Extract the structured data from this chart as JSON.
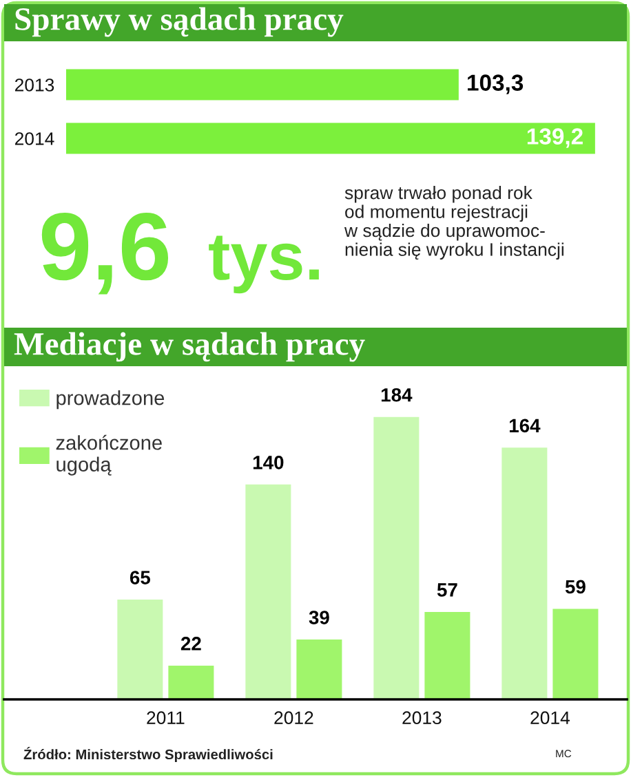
{
  "chart_data": [
    {
      "type": "bar",
      "title": "Sprawy w sądach pracy",
      "orientation": "horizontal",
      "categories": [
        "2013",
        "2014"
      ],
      "values": [
        103.3,
        139.2
      ],
      "color": "#7cf03c",
      "value_labels": [
        "103,3",
        "139,2"
      ]
    },
    {
      "type": "other",
      "annotations": [
        "9,6",
        "tys.",
        "spraw trwało ponad rok\nod momentu rejestracji\nw sądzie do uprawomoc-\nnienia się wyroku I instancji"
      ]
    },
    {
      "type": "bar",
      "title": "Mediacje w sądach pracy",
      "categories": [
        "2011",
        "2012",
        "2013",
        "2014"
      ],
      "series": [
        {
          "name": "prowadzone",
          "color": "#c9f9b1",
          "values": [
            65,
            140,
            184,
            164
          ]
        },
        {
          "name": "zakończone\nugodą",
          "color": "#a0f56b",
          "values": [
            22,
            39,
            57,
            59
          ]
        }
      ],
      "data_labels": true,
      "legend": "top left",
      "annotations": [
        "Źródło: Ministerstwo Sprawiedliwości",
        "MC"
      ]
    }
  ]
}
